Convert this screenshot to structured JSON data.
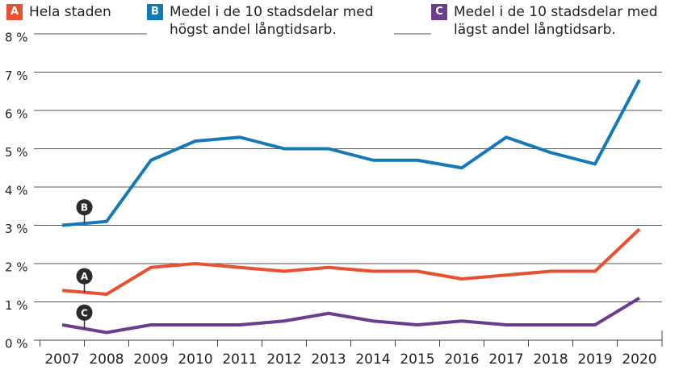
{
  "chart_data": {
    "type": "line",
    "categories": [
      "2007",
      "2008",
      "2009",
      "2010",
      "2011",
      "2012",
      "2013",
      "2014",
      "2015",
      "2016",
      "2017",
      "2018",
      "2019",
      "2020"
    ],
    "series": [
      {
        "badge": "A",
        "name": "Hela staden",
        "color": "#e8502f",
        "values": [
          1.3,
          1.2,
          1.9,
          2.0,
          1.9,
          1.8,
          1.9,
          1.8,
          1.8,
          1.6,
          1.7,
          1.8,
          1.8,
          2.9
        ]
      },
      {
        "badge": "B",
        "name": "Medel i de 10 stadsdelar med högst andel långtidsarb.",
        "color": "#1479b8",
        "values": [
          3.0,
          3.1,
          4.7,
          5.2,
          5.3,
          5.0,
          5.0,
          4.7,
          4.7,
          4.5,
          5.3,
          4.9,
          4.6,
          6.8
        ]
      },
      {
        "badge": "C",
        "name": "Medel i de 10 stadsdelar med lägst andel långtidsarb.",
        "color": "#6a3d8f",
        "values": [
          0.4,
          0.2,
          0.4,
          0.4,
          0.4,
          0.5,
          0.7,
          0.5,
          0.4,
          0.5,
          0.4,
          0.4,
          0.4,
          1.1
        ]
      }
    ],
    "ylim": [
      0,
      8
    ],
    "yticks": [
      {
        "value": 0,
        "label": "0 %"
      },
      {
        "value": 1,
        "label": "1 %"
      },
      {
        "value": 2,
        "label": "2 %"
      },
      {
        "value": 3,
        "label": "3 %"
      },
      {
        "value": 4,
        "label": "4 %"
      },
      {
        "value": 5,
        "label": "5 %"
      },
      {
        "value": 6,
        "label": "6 %"
      },
      {
        "value": 7,
        "label": "7 %"
      },
      {
        "value": 8,
        "label": "8 %"
      }
    ],
    "grid": true
  }
}
